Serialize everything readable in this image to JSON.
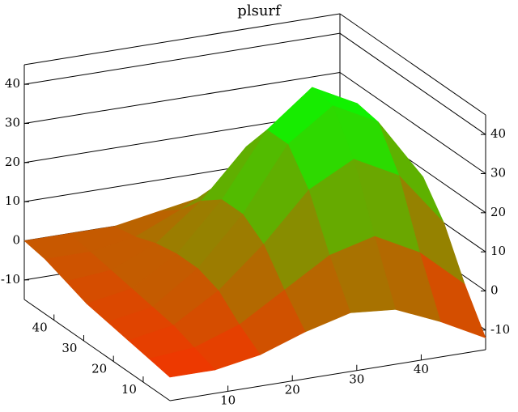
{
  "chart_data": {
    "type": "surface",
    "title": "plsurf",
    "x": [
      1,
      8,
      15,
      22,
      29,
      36,
      43,
      50
    ],
    "y": [
      1,
      8,
      15,
      22,
      29,
      36,
      43,
      50
    ],
    "z": [
      [
        -9,
        -9,
        -7,
        -3,
        0,
        -1,
        -6,
        -12
      ],
      [
        -8,
        -7,
        -3,
        4,
        11,
        14,
        8,
        -2
      ],
      [
        -7,
        -5,
        2,
        12,
        24,
        30,
        24,
        10
      ],
      [
        -6,
        -4,
        4,
        16,
        32,
        40,
        34,
        18
      ],
      [
        -5,
        -3,
        4,
        16,
        32,
        41,
        35,
        20
      ],
      [
        -3,
        -2,
        3,
        12,
        24,
        30,
        26,
        14
      ],
      [
        -1,
        -1,
        1,
        6,
        12,
        16,
        14,
        8
      ],
      [
        0,
        0,
        0,
        2,
        4,
        5,
        4,
        2
      ]
    ],
    "low_color": "#ff2a00",
    "high_color": "#00ff00",
    "xlim": [
      1,
      50
    ],
    "ylim": [
      1,
      50
    ],
    "zlim": [
      -15,
      45
    ],
    "xticks": [
      10,
      20,
      30,
      40
    ],
    "yticks": [
      10,
      20,
      30,
      40
    ],
    "zticks": [
      -10,
      0,
      10,
      20,
      30,
      40
    ],
    "grid": true
  }
}
